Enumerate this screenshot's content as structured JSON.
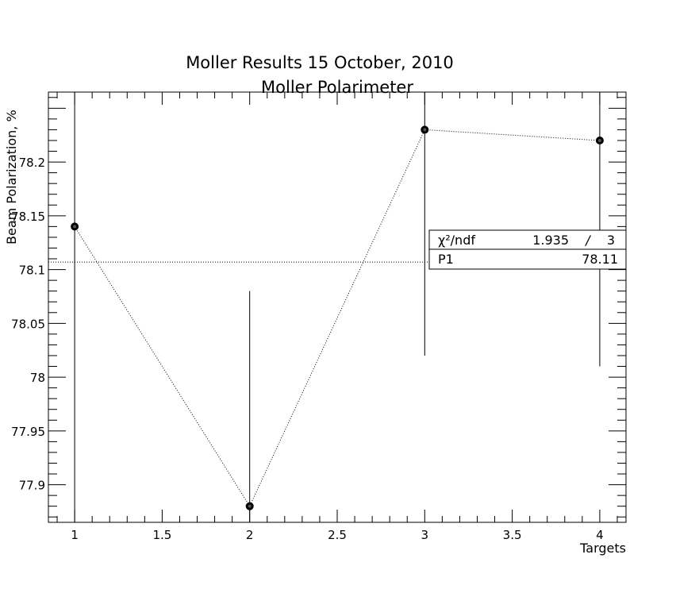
{
  "chart_data": {
    "type": "scatter",
    "title": "Moller Results 15 October, 2010",
    "subtitle": "Moller Polarimeter",
    "xlabel": "Targets",
    "ylabel": "Beam Polarization, %",
    "xlim": [
      0.85,
      4.15
    ],
    "ylim": [
      77.865,
      78.265
    ],
    "x_ticks": [
      1,
      1.5,
      2,
      2.5,
      3,
      3.5,
      4
    ],
    "x_tick_labels": [
      "1",
      "1.5",
      "2",
      "2.5",
      "3",
      "3.5",
      "4"
    ],
    "y_ticks": [
      77.9,
      77.95,
      78,
      78.05,
      78.1,
      78.15,
      78.2
    ],
    "y_tick_labels": [
      "77.9",
      "77.95",
      "78",
      "78.05",
      "78.1",
      "78.15",
      "78.2"
    ],
    "series": [
      {
        "x": [
          1,
          2,
          3,
          4
        ],
        "y": [
          78.14,
          77.88,
          78.23,
          78.22
        ],
        "y_err_low": [
          77.865,
          77.865,
          78.02,
          78.01
        ],
        "y_err_high": [
          78.265,
          78.08,
          78.265,
          78.265
        ]
      }
    ],
    "fit": {
      "value": 78.107,
      "stats": [
        {
          "label": "χ²/ndf",
          "value": "1.935",
          "sep": "/",
          "value2": "3"
        },
        {
          "label": "P1",
          "value": "78.11",
          "sep": "",
          "value2": ""
        }
      ]
    },
    "grid": false
  }
}
